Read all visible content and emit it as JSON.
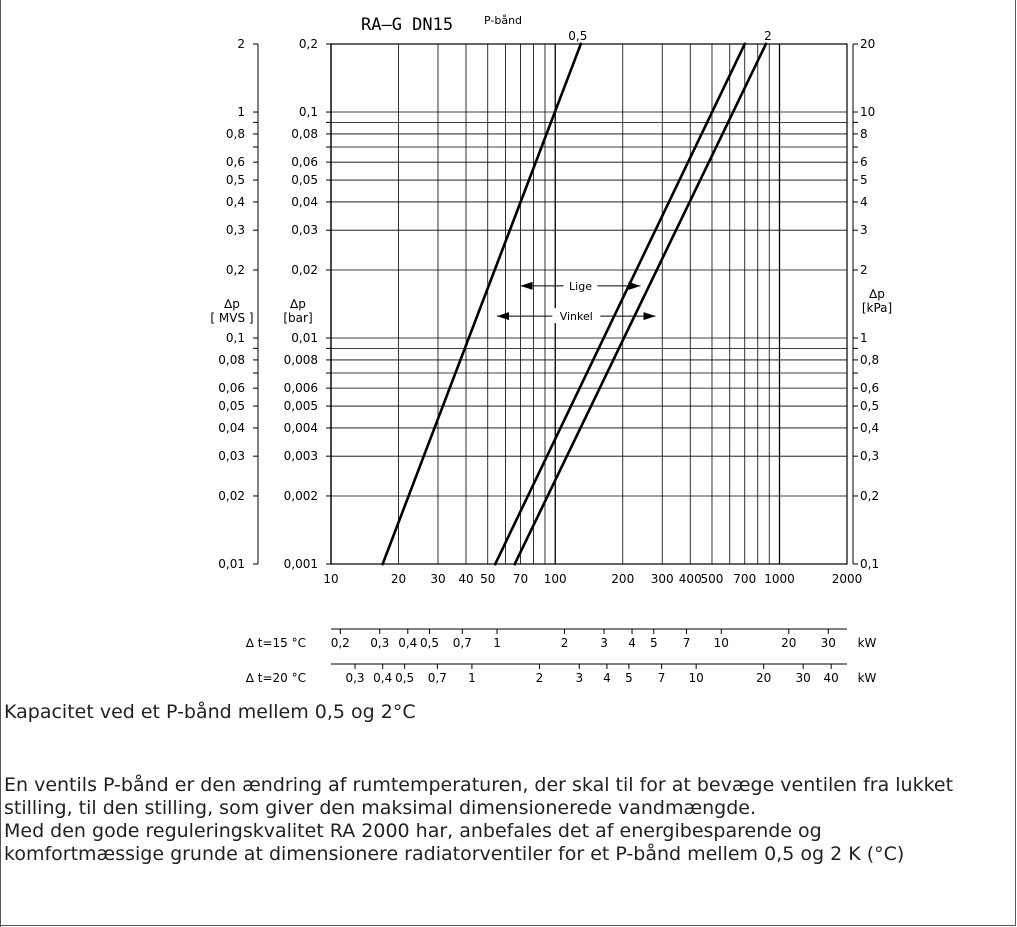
{
  "chart_data": {
    "type": "line",
    "title": "RA–G  DN15",
    "series_header": "P-bånd",
    "x_scale": "log",
    "xlim": [
      10,
      2000
    ],
    "ylim_bar": [
      0.001,
      0.2
    ],
    "x_ticks": [
      "10",
      "20",
      "30",
      "40",
      "50",
      "70",
      "100",
      "200",
      "300",
      "400",
      "500",
      "700",
      "1000",
      "2000"
    ],
    "y_left_outer_label": "∆p\n[ MVS ]",
    "y_left_inner_label": "∆p\n[bar]",
    "y_right_label": "∆p\n[kPa]",
    "y_ticks": [
      {
        "bar": 0.2,
        "mvs": "2",
        "bar_label": "0,2",
        "kpa": "20"
      },
      {
        "bar": 0.1,
        "mvs": "1",
        "bar_label": "0,1",
        "kpa": "10"
      },
      {
        "bar": 0.08,
        "mvs": "0,8",
        "bar_label": "0,08",
        "kpa": "8"
      },
      {
        "bar": 0.06,
        "mvs": "0,6",
        "bar_label": "0,06",
        "kpa": "6"
      },
      {
        "bar": 0.05,
        "mvs": "0,5",
        "bar_label": "0,05",
        "kpa": "5"
      },
      {
        "bar": 0.04,
        "mvs": "0,4",
        "bar_label": "0,04",
        "kpa": "4"
      },
      {
        "bar": 0.03,
        "mvs": "0,3",
        "bar_label": "0,03",
        "kpa": "3"
      },
      {
        "bar": 0.02,
        "mvs": "0,2",
        "bar_label": "0,02",
        "kpa": "2"
      },
      {
        "bar": 0.01,
        "mvs": "0,1",
        "bar_label": "0,01",
        "kpa": "1"
      },
      {
        "bar": 0.008,
        "mvs": "0,08",
        "bar_label": "0,008",
        "kpa": "0,8"
      },
      {
        "bar": 0.006,
        "mvs": "0,06",
        "bar_label": "0,006",
        "kpa": "0,6"
      },
      {
        "bar": 0.005,
        "mvs": "0,05",
        "bar_label": "0,005",
        "kpa": "0,5"
      },
      {
        "bar": 0.004,
        "mvs": "0,04",
        "bar_label": "0,004",
        "kpa": "0,4"
      },
      {
        "bar": 0.003,
        "mvs": "0,03",
        "bar_label": "0,003",
        "kpa": "0,3"
      },
      {
        "bar": 0.002,
        "mvs": "0,02",
        "bar_label": "0,002",
        "kpa": "0,2"
      },
      {
        "bar": 0.001,
        "mvs": "0,01",
        "bar_label": "0,001",
        "kpa": "0,1"
      }
    ],
    "series": [
      {
        "name": "0,5",
        "points": [
          [
            17,
            0.001
          ],
          [
            130,
            0.2
          ]
        ]
      },
      {
        "name": "",
        "points": [
          [
            54,
            0.001
          ],
          [
            700,
            0.2
          ]
        ]
      },
      {
        "name": "2",
        "points": [
          [
            66,
            0.001
          ],
          [
            870,
            0.2
          ]
        ]
      }
    ],
    "annotations": [
      {
        "text": "Lige",
        "x_from": 70,
        "x_to": 240,
        "bar": 0.017
      },
      {
        "text": "Vinkel",
        "x_from": 55,
        "x_to": 280,
        "bar": 0.0125
      }
    ],
    "kw_scales": [
      {
        "label": "∆  t=15 °C",
        "unit": "kW",
        "ticks": [
          {
            "t": "0,2",
            "x": 11
          },
          {
            "t": "0,3",
            "x": 16.5
          },
          {
            "t": "0,4",
            "x": 22
          },
          {
            "t": "0,5",
            "x": 27.5
          },
          {
            "t": "0,7",
            "x": 38.5
          },
          {
            "t": "1",
            "x": 55
          },
          {
            "t": "2",
            "x": 110
          },
          {
            "t": "3",
            "x": 165
          },
          {
            "t": "4",
            "x": 220
          },
          {
            "t": "5",
            "x": 275
          },
          {
            "t": "7",
            "x": 385
          },
          {
            "t": "10",
            "x": 550
          },
          {
            "t": "20",
            "x": 1100
          },
          {
            "t": "30",
            "x": 1650
          }
        ]
      },
      {
        "label": "∆  t=20 °C",
        "unit": "kW",
        "ticks": [
          {
            "t": "0,3",
            "x": 12.8
          },
          {
            "t": "0,4",
            "x": 17
          },
          {
            "t": "0,5",
            "x": 21.3
          },
          {
            "t": "0,7",
            "x": 29.8
          },
          {
            "t": "1",
            "x": 42.5
          },
          {
            "t": "2",
            "x": 85
          },
          {
            "t": "3",
            "x": 128
          },
          {
            "t": "4",
            "x": 170
          },
          {
            "t": "5",
            "x": 213
          },
          {
            "t": "7",
            "x": 298
          },
          {
            "t": "10",
            "x": 425
          },
          {
            "t": "20",
            "x": 850
          },
          {
            "t": "30",
            "x": 1275
          },
          {
            "t": "40",
            "x": 1700
          }
        ]
      }
    ]
  },
  "caption": "Kapacitet ved et P-bånd mellem 0,5 og 2°C",
  "paragraph": [
    "En ventils P-bånd er den ændring af rumtemperaturen, der skal til for at bevæge ventilen fra lukket",
    "stilling, til den stilling, som giver den maksimal dimensionerede vandmængde.",
    "Med den gode reguleringskvalitet RA 2000 har, anbefales det af energibesparende og",
    "komfortmæssige grunde at dimensionere radiatorventiler for et P-bånd mellem 0,5 og 2 K (°C)"
  ]
}
